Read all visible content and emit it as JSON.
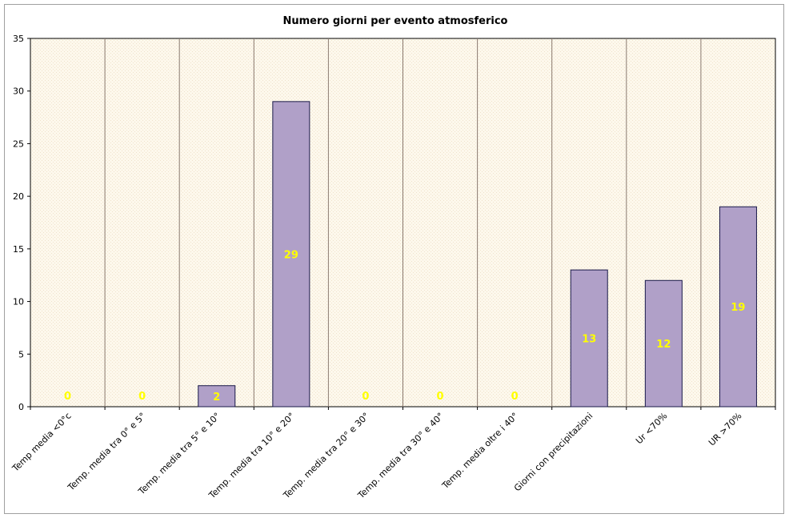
{
  "chart_data": {
    "type": "bar",
    "title": "Numero giorni per evento atmosferico",
    "xlabel": "",
    "ylabel": "",
    "categories": [
      "Temp media <0°c",
      "Temp. media tra 0° e 5°",
      "Temp. media tra 5° e 10°",
      "Temp. media tra 10° e 20°",
      "Temp. media tra 20° e 30°",
      "Temp. media tra 30° e 40°",
      "Temp. media oltre i 40°",
      "Giorni con precipitazioni",
      "Ur <70%",
      "UR >70%"
    ],
    "values": [
      0,
      0,
      2,
      29,
      0,
      0,
      0,
      13,
      12,
      19
    ],
    "ylim": [
      0,
      35
    ],
    "yticks": [
      0,
      5,
      10,
      15,
      20,
      25,
      30,
      35
    ],
    "grid": "vertical category separators",
    "legend": "none",
    "colors": {
      "bar_fill": "#b0a0c8",
      "bar_stroke": "#1a1a4a",
      "plot_background": "#fdf8ec",
      "data_label": "#ffff00",
      "grid": "#8a7a70"
    }
  }
}
